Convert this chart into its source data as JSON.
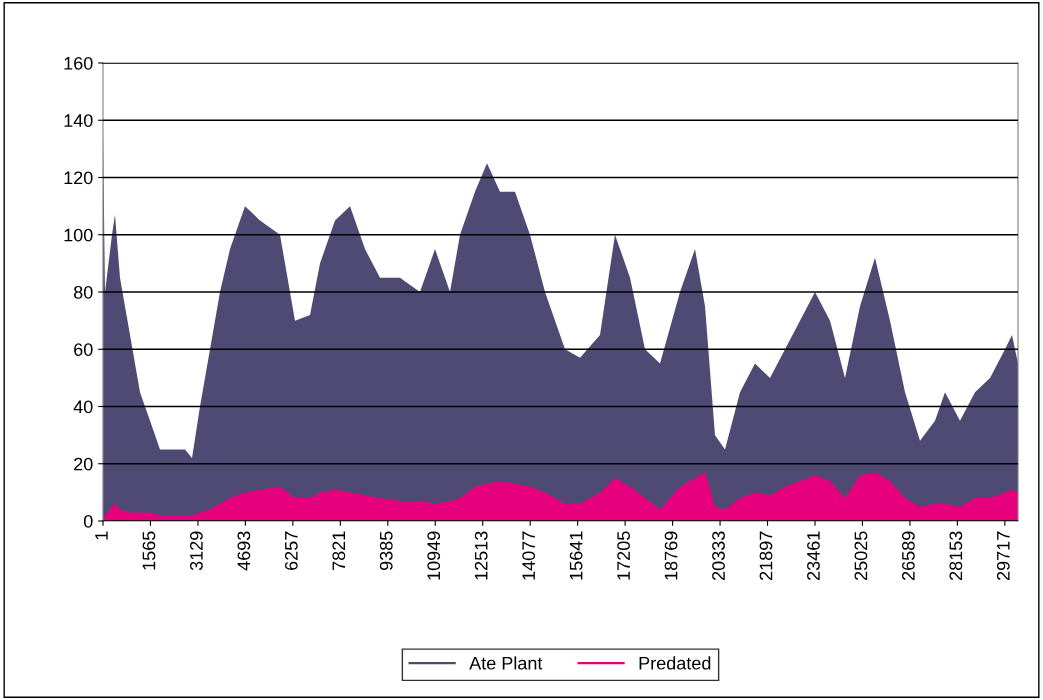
{
  "chart_data": {
    "type": "area",
    "x": [
      1,
      67,
      298,
      396,
      561,
      891,
      1220,
      1550,
      1879,
      2209,
      2703,
      2934,
      3197,
      3527,
      3856,
      4186,
      4680,
      5174,
      5833,
      6327,
      6822,
      7151,
      7645,
      8140,
      8634,
      9128,
      9787,
      10446,
      10940,
      11435,
      11764,
      12258,
      12654,
      13082,
      13576,
      14071,
      14565,
      15224,
      15718,
      16377,
      16871,
      17366,
      17860,
      18354,
      19013,
      19507,
      19837,
      20166,
      20496,
      20990,
      21484,
      21979,
      22473,
      22967,
      23461,
      23956,
      24450,
      24944,
      25438,
      25933,
      26427,
      26921,
      27415,
      27745,
      28239,
      28733,
      29228,
      29722,
      29953,
      30150
    ],
    "series": [
      {
        "name": "Ate Plant",
        "color": "#4f4a73",
        "values": [
          135,
          80,
          100,
          107,
          85,
          65,
          45,
          35,
          25,
          25,
          25,
          22,
          40,
          60,
          80,
          95,
          110,
          105,
          100,
          70,
          72,
          90,
          105,
          110,
          95,
          85,
          85,
          80,
          95,
          80,
          100,
          115,
          125,
          115,
          115,
          100,
          80,
          60,
          57,
          65,
          100,
          85,
          60,
          55,
          80,
          95,
          75,
          30,
          25,
          45,
          55,
          50,
          60,
          70,
          80,
          70,
          50,
          75,
          92,
          70,
          45,
          28,
          35,
          45,
          35,
          45,
          50,
          60,
          65,
          55
        ]
      },
      {
        "name": "Predated",
        "color": "#e6007e",
        "values": [
          0,
          2,
          5,
          6,
          4,
          3,
          3,
          3,
          2,
          2,
          2,
          2,
          3,
          4,
          6,
          8,
          10,
          11,
          12,
          8,
          8,
          10,
          11,
          10,
          9,
          8,
          7,
          7,
          6,
          7,
          8,
          12,
          13,
          14,
          13,
          12,
          10,
          6,
          6,
          10,
          15,
          12,
          8,
          4,
          12,
          15,
          17,
          5,
          4,
          8,
          10,
          9,
          12,
          14,
          16,
          14,
          8,
          16,
          17,
          14,
          8,
          5,
          6,
          6,
          5,
          8,
          8,
          10,
          11,
          10
        ]
      }
    ],
    "xlim": [
      1,
      30150
    ],
    "xticks": [
      1,
      1565,
      3129,
      4693,
      6257,
      7821,
      9385,
      10949,
      12513,
      14077,
      15641,
      17205,
      18769,
      20333,
      21897,
      23461,
      25025,
      26589,
      28153,
      29717
    ],
    "ylim": [
      0,
      160
    ],
    "yticks": [
      0,
      20,
      40,
      60,
      80,
      100,
      120,
      140,
      160
    ],
    "grid": "y",
    "legend": "bottom"
  }
}
